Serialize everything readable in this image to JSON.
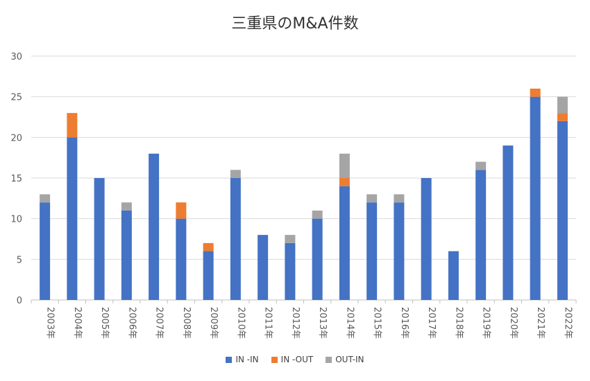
{
  "chart_data": {
    "type": "bar",
    "stacked": true,
    "title": "三重県のM&A件数",
    "xlabel": "",
    "ylabel": "",
    "ylim": [
      0,
      30
    ],
    "yticks": [
      0,
      5,
      10,
      15,
      20,
      25,
      30
    ],
    "grid": true,
    "legend_position": "bottom",
    "categories": [
      "2003年",
      "2004年",
      "2005年",
      "2006年",
      "2007年",
      "2008年",
      "2009年",
      "2010年",
      "2011年",
      "2012年",
      "2013年",
      "2014年",
      "2015年",
      "2016年",
      "2017年",
      "2018年",
      "2019年",
      "2020年",
      "2021年",
      "2022年"
    ],
    "series": [
      {
        "name": "IN -IN",
        "color": "#4472c4",
        "values": [
          12,
          20,
          15,
          11,
          18,
          10,
          6,
          15,
          8,
          7,
          10,
          14,
          12,
          12,
          15,
          6,
          16,
          19,
          25,
          22
        ]
      },
      {
        "name": "IN -OUT",
        "color": "#ed7d31",
        "values": [
          0,
          3,
          0,
          0,
          0,
          2,
          1,
          0,
          0,
          0,
          0,
          1,
          0,
          0,
          0,
          0,
          0,
          0,
          1,
          1
        ]
      },
      {
        "name": "OUT-IN",
        "color": "#a5a5a5",
        "values": [
          1,
          0,
          0,
          1,
          0,
          0,
          0,
          1,
          0,
          1,
          1,
          3,
          1,
          1,
          0,
          0,
          1,
          0,
          0,
          2
        ]
      }
    ]
  }
}
